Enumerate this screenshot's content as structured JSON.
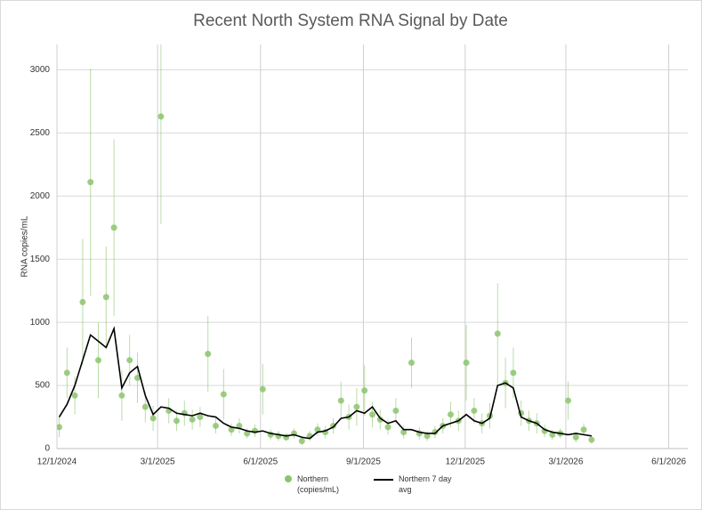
{
  "chart_data": {
    "type": "scatter",
    "title": "Recent North System RNA Signal by Date",
    "y_label": "RNA copies/mL",
    "x": [
      "12/3/2024",
      "12/10/2024",
      "12/17/2024",
      "12/24/2024",
      "12/31/2024",
      "1/7/2025",
      "1/14/2025",
      "1/21/2025",
      "1/28/2025",
      "2/4/2025",
      "2/11/2025",
      "2/18/2025",
      "2/25/2025",
      "3/4/2025",
      "3/11/2025",
      "3/18/2025",
      "3/25/2025",
      "4/1/2025",
      "4/8/2025",
      "4/15/2025",
      "4/22/2025",
      "4/29/2025",
      "5/6/2025",
      "5/13/2025",
      "5/20/2025",
      "5/27/2025",
      "6/3/2025",
      "6/10/2025",
      "6/17/2025",
      "6/24/2025",
      "7/1/2025",
      "7/8/2025",
      "7/15/2025",
      "7/22/2025",
      "7/29/2025",
      "8/5/2025",
      "8/12/2025",
      "8/19/2025",
      "8/26/2025",
      "9/2/2025",
      "9/9/2025",
      "9/16/2025",
      "9/23/2025",
      "9/30/2025",
      "10/7/2025",
      "10/14/2025",
      "10/21/2025",
      "10/28/2025",
      "11/4/2025",
      "11/11/2025",
      "11/18/2025",
      "11/25/2025",
      "12/2/2025",
      "12/9/2025",
      "12/16/2025",
      "12/23/2025",
      "12/30/2025",
      "1/6/2026",
      "1/13/2026",
      "1/20/2026",
      "1/27/2026",
      "2/3/2026",
      "2/10/2026",
      "2/17/2026",
      "2/24/2026",
      "3/3/2026",
      "3/10/2026",
      "3/17/2026",
      "3/24/2026"
    ],
    "series": [
      {
        "name": "Northern (copies/mL)",
        "type": "scatter",
        "color": "#8cc46e",
        "values": [
          170,
          600,
          420,
          1160,
          2110,
          700,
          1200,
          1750,
          420,
          700,
          560,
          330,
          240,
          2630,
          300,
          220,
          280,
          230,
          250,
          750,
          180,
          430,
          150,
          180,
          120,
          140,
          470,
          110,
          100,
          90,
          120,
          60,
          100,
          150,
          130,
          180,
          380,
          250,
          330,
          460,
          270,
          230,
          170,
          300,
          130,
          680,
          120,
          100,
          130,
          180,
          270,
          220,
          680,
          300,
          200,
          260,
          910,
          520,
          600,
          280,
          220,
          200,
          140,
          110,
          120,
          380,
          90,
          150,
          70
        ],
        "errors": [
          80,
          200,
          150,
          500,
          900,
          300,
          400,
          700,
          200,
          200,
          200,
          120,
          100,
          850,
          100,
          80,
          100,
          80,
          80,
          300,
          60,
          200,
          50,
          60,
          40,
          50,
          200,
          40,
          40,
          30,
          40,
          30,
          40,
          50,
          50,
          60,
          150,
          100,
          150,
          200,
          100,
          80,
          60,
          100,
          50,
          200,
          50,
          40,
          50,
          60,
          100,
          80,
          300,
          100,
          80,
          100,
          400,
          200,
          200,
          100,
          80,
          80,
          50,
          40,
          40,
          150,
          40,
          50,
          30
        ]
      },
      {
        "name": "Northern 7 day avg",
        "type": "line",
        "color": "#000000",
        "values": [
          250,
          350,
          500,
          700,
          900,
          850,
          800,
          950,
          480,
          600,
          650,
          420,
          270,
          330,
          320,
          280,
          270,
          260,
          280,
          260,
          250,
          200,
          170,
          160,
          140,
          130,
          140,
          120,
          110,
          100,
          110,
          90,
          80,
          130,
          140,
          170,
          240,
          250,
          300,
          280,
          330,
          240,
          200,
          220,
          150,
          150,
          130,
          120,
          120,
          180,
          200,
          220,
          270,
          220,
          200,
          240,
          500,
          520,
          480,
          250,
          220,
          200,
          150,
          130,
          120,
          110,
          120,
          110,
          100
        ]
      }
    ],
    "xlim": [
      "12/1/2024",
      "6/18/2026"
    ],
    "xticks": [
      "12/1/2024",
      "3/1/2025",
      "6/1/2025",
      "9/1/2025",
      "12/1/2025",
      "3/1/2026",
      "6/1/2026"
    ],
    "ylim": [
      0,
      3200
    ],
    "yticks": [
      0,
      500,
      1000,
      1500,
      2000,
      2500,
      3000
    ],
    "grid": true
  }
}
